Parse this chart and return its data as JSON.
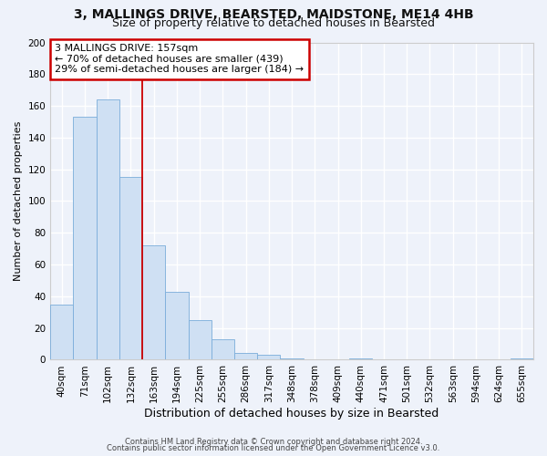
{
  "title1": "3, MALLINGS DRIVE, BEARSTED, MAIDSTONE, ME14 4HB",
  "title2": "Size of property relative to detached houses in Bearsted",
  "xlabel": "Distribution of detached houses by size in Bearsted",
  "ylabel": "Number of detached properties",
  "bar_values": [
    35,
    153,
    164,
    115,
    72,
    43,
    25,
    13,
    4,
    3,
    1,
    0,
    0,
    1,
    0,
    0,
    0,
    0,
    0,
    0,
    1
  ],
  "bar_labels": [
    "40sqm",
    "71sqm",
    "102sqm",
    "132sqm",
    "163sqm",
    "194sqm",
    "225sqm",
    "255sqm",
    "286sqm",
    "317sqm",
    "348sqm",
    "378sqm",
    "409sqm",
    "440sqm",
    "471sqm",
    "501sqm",
    "532sqm",
    "563sqm",
    "594sqm",
    "624sqm",
    "655sqm"
  ],
  "bar_color": "#cfe0f3",
  "bar_edge_color": "#7aadda",
  "background_color": "#eef2fa",
  "grid_color": "#ffffff",
  "red_line_x": 3.5,
  "annotation_line1": "3 MALLINGS DRIVE: 157sqm",
  "annotation_line2": "← 70% of detached houses are smaller (439)",
  "annotation_line3": "29% of semi-detached houses are larger (184) →",
  "annotation_box_color": "#ffffff",
  "annotation_box_edge": "#cc0000",
  "footer_line1": "Contains HM Land Registry data © Crown copyright and database right 2024.",
  "footer_line2": "Contains public sector information licensed under the Open Government Licence v3.0.",
  "ylim": [
    0,
    200
  ],
  "yticks": [
    0,
    20,
    40,
    60,
    80,
    100,
    120,
    140,
    160,
    180,
    200
  ],
  "title1_fontsize": 10,
  "title2_fontsize": 9,
  "ylabel_fontsize": 8,
  "xlabel_fontsize": 9,
  "tick_fontsize": 7.5,
  "annotation_fontsize": 8,
  "footer_fontsize": 6
}
